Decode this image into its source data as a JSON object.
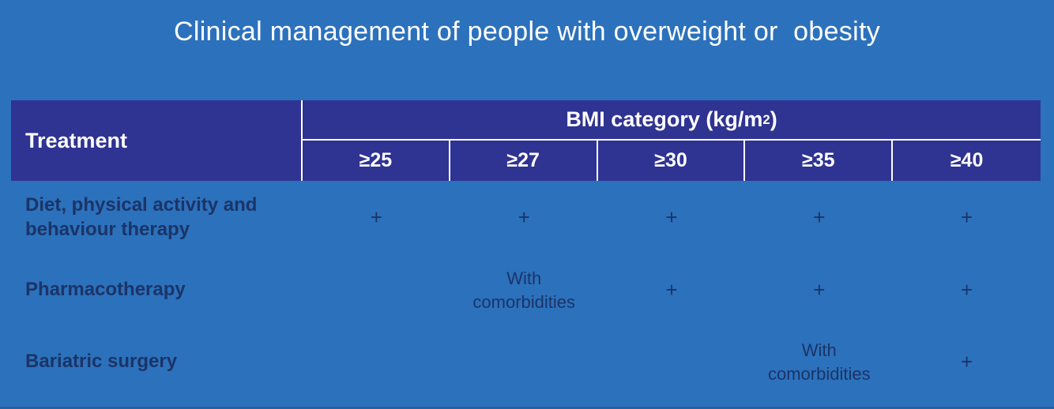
{
  "title": "Clinical management of people with overweight or  obesity",
  "colors": {
    "background": "#2C71BC",
    "header_navy": "#2F3392",
    "body_text_navy": "#1B3467",
    "border_white": "#FFFFFF",
    "title_text": "#FFFFFF"
  },
  "table": {
    "corner_header": "Treatment",
    "bmi_header": {
      "prefix": "BMI category (kg/m",
      "sup": "2",
      "suffix": ")"
    },
    "bmi_columns": [
      "≥25",
      "≥27",
      "≥30",
      "≥35",
      "≥40"
    ],
    "rows": [
      {
        "label": "Diet, physical activity and behaviour therapy",
        "cells": [
          "+",
          "+",
          "+",
          "+",
          "+"
        ]
      },
      {
        "label": "Pharmacotherapy",
        "cells": [
          "",
          "With comorbidities",
          "+",
          "+",
          "+"
        ]
      },
      {
        "label": "Bariatric surgery",
        "cells": [
          "",
          "",
          "",
          "With comorbidities",
          "+"
        ]
      }
    ]
  }
}
